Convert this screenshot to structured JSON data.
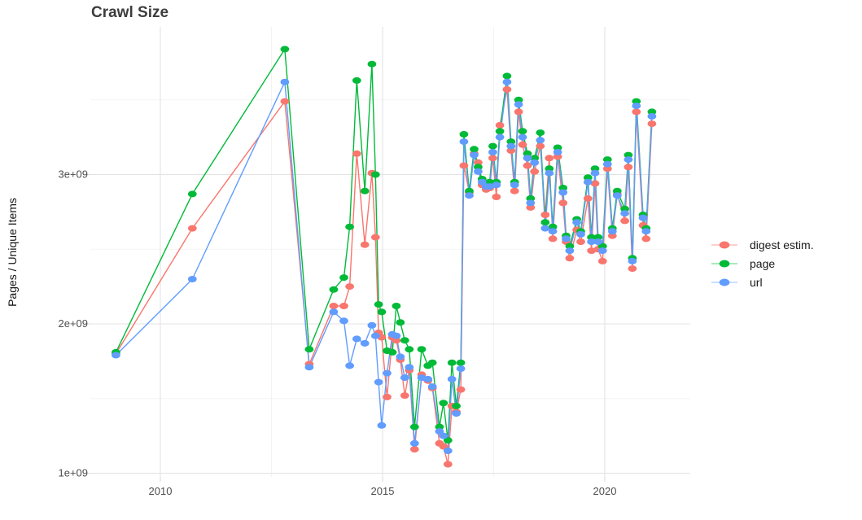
{
  "chart_data": {
    "type": "line",
    "title": "Crawl Size",
    "xlabel": "",
    "ylabel": "Pages / Unique Items",
    "legend_position": "right-center",
    "grid": "major and minor, light gray on white",
    "xlim": [
      2008.6,
      2021.9
    ],
    "ylim": [
      960000000.0,
      4000000000.0
    ],
    "x_axis": {
      "major_ticks": [
        {
          "value": 2010,
          "label": "2010"
        },
        {
          "value": 2015,
          "label": "2015"
        },
        {
          "value": 2020,
          "label": "2020"
        }
      ],
      "minor_ticks": [
        2012.5,
        2017.5
      ]
    },
    "y_axis": {
      "major_ticks": [
        {
          "value": 1000000000.0,
          "label": "1e+09"
        },
        {
          "value": 2000000000.0,
          "label": "2e+09"
        },
        {
          "value": 3000000000.0,
          "label": "3e+09"
        }
      ],
      "minor_ticks": [
        1500000000.0,
        2500000000.0,
        3500000000.0
      ]
    },
    "x": [
      2009.0,
      2010.72,
      2012.8,
      2013.35,
      2013.9,
      2014.13,
      2014.26,
      2014.42,
      2014.6,
      2014.76,
      2014.84,
      2014.91,
      2014.98,
      2015.1,
      2015.22,
      2015.31,
      2015.4,
      2015.5,
      2015.6,
      2015.72,
      2015.88,
      2016.02,
      2016.12,
      2016.28,
      2016.37,
      2016.47,
      2016.56,
      2016.66,
      2016.76,
      2016.83,
      2016.95,
      2017.06,
      2017.15,
      2017.24,
      2017.33,
      2017.41,
      2017.48,
      2017.56,
      2017.64,
      2017.8,
      2017.89,
      2017.97,
      2018.06,
      2018.15,
      2018.26,
      2018.33,
      2018.42,
      2018.55,
      2018.66,
      2018.75,
      2018.83,
      2018.94,
      2019.06,
      2019.13,
      2019.21,
      2019.37,
      2019.46,
      2019.62,
      2019.7,
      2019.78,
      2019.85,
      2019.95,
      2020.06,
      2020.17,
      2020.28,
      2020.45,
      2020.53,
      2020.62,
      2020.71,
      2020.86,
      2020.93,
      2021.06
    ],
    "series": [
      {
        "name": "digest estim.",
        "color": "#F8766D",
        "values": [
          1800000000.0,
          2640000000.0,
          3490000000.0,
          1730000000.0,
          2120000000.0,
          2120000000.0,
          2250000000.0,
          3140000000.0,
          2530000000.0,
          3010000000.0,
          2580000000.0,
          1940000000.0,
          1910000000.0,
          1510000000.0,
          1910000000.0,
          1890000000.0,
          1760000000.0,
          1520000000.0,
          1690000000.0,
          1160000000.0,
          1660000000.0,
          1620000000.0,
          1570000000.0,
          1200000000.0,
          1180000000.0,
          1060000000.0,
          1450000000.0,
          1410000000.0,
          1560000000.0,
          3060000000.0,
          2880000000.0,
          3140000000.0,
          3080000000.0,
          2930000000.0,
          2900000000.0,
          2910000000.0,
          3110000000.0,
          2850000000.0,
          3330000000.0,
          3570000000.0,
          3160000000.0,
          2890000000.0,
          3420000000.0,
          3200000000.0,
          3060000000.0,
          2780000000.0,
          3020000000.0,
          3190000000.0,
          2730000000.0,
          3110000000.0,
          2570000000.0,
          3120000000.0,
          2810000000.0,
          2550000000.0,
          2440000000.0,
          2630000000.0,
          2550000000.0,
          2840000000.0,
          2490000000.0,
          2940000000.0,
          2500000000.0,
          2420000000.0,
          3040000000.0,
          2590000000.0,
          2870000000.0,
          2690000000.0,
          3050000000.0,
          2370000000.0,
          3420000000.0,
          2660000000.0,
          2570000000.0,
          3340000000.0
        ]
      },
      {
        "name": "page",
        "color": "#00BA38",
        "values": [
          1810000000.0,
          2870000000.0,
          3840000000.0,
          1830000000.0,
          2230000000.0,
          2310000000.0,
          2650000000.0,
          3630000000.0,
          2890000000.0,
          3740000000.0,
          3000000000.0,
          2130000000.0,
          2080000000.0,
          1820000000.0,
          1810000000.0,
          2120000000.0,
          2010000000.0,
          1890000000.0,
          1830000000.0,
          1310000000.0,
          1830000000.0,
          1720000000.0,
          1740000000.0,
          1310000000.0,
          1470000000.0,
          1220000000.0,
          1740000000.0,
          1450000000.0,
          1740000000.0,
          3270000000.0,
          2890000000.0,
          3170000000.0,
          3050000000.0,
          2970000000.0,
          2940000000.0,
          2950000000.0,
          3190000000.0,
          2950000000.0,
          3290000000.0,
          3660000000.0,
          3220000000.0,
          2950000000.0,
          3500000000.0,
          3290000000.0,
          3140000000.0,
          2840000000.0,
          3110000000.0,
          3280000000.0,
          2680000000.0,
          3040000000.0,
          2650000000.0,
          3180000000.0,
          2910000000.0,
          2590000000.0,
          2520000000.0,
          2700000000.0,
          2620000000.0,
          2980000000.0,
          2580000000.0,
          3040000000.0,
          2580000000.0,
          2520000000.0,
          3100000000.0,
          2640000000.0,
          2890000000.0,
          2770000000.0,
          3130000000.0,
          2440000000.0,
          3490000000.0,
          2730000000.0,
          2640000000.0,
          3420000000.0
        ]
      },
      {
        "name": "url",
        "color": "#619CFF",
        "values": [
          1790000000.0,
          2300000000.0,
          3620000000.0,
          1710000000.0,
          2080000000.0,
          2020000000.0,
          1720000000.0,
          1900000000.0,
          1870000000.0,
          1990000000.0,
          1920000000.0,
          1610000000.0,
          1320000000.0,
          1670000000.0,
          1930000000.0,
          1920000000.0,
          1780000000.0,
          1640000000.0,
          1710000000.0,
          1200000000.0,
          1640000000.0,
          1630000000.0,
          1580000000.0,
          1280000000.0,
          1250000000.0,
          1150000000.0,
          1630000000.0,
          1400000000.0,
          1700000000.0,
          3220000000.0,
          2860000000.0,
          3130000000.0,
          3020000000.0,
          2950000000.0,
          2920000000.0,
          2920000000.0,
          3150000000.0,
          2930000000.0,
          3250000000.0,
          3620000000.0,
          3190000000.0,
          2930000000.0,
          3470000000.0,
          3250000000.0,
          3110000000.0,
          2810000000.0,
          3080000000.0,
          3230000000.0,
          2640000000.0,
          3010000000.0,
          2620000000.0,
          3150000000.0,
          2880000000.0,
          2570000000.0,
          2490000000.0,
          2680000000.0,
          2600000000.0,
          2950000000.0,
          2550000000.0,
          3010000000.0,
          2550000000.0,
          2490000000.0,
          3070000000.0,
          2620000000.0,
          2860000000.0,
          2740000000.0,
          3100000000.0,
          2420000000.0,
          3460000000.0,
          2710000000.0,
          2620000000.0,
          3390000000.0
        ]
      }
    ],
    "style": {
      "grid_major_color": "#E3E3E3",
      "grid_minor_color": "#F0F0F0",
      "tick_label_color": "#4d4d4d",
      "title_color": "#3d3d3d",
      "background": "#ffffff",
      "marker": "ellipse"
    }
  }
}
